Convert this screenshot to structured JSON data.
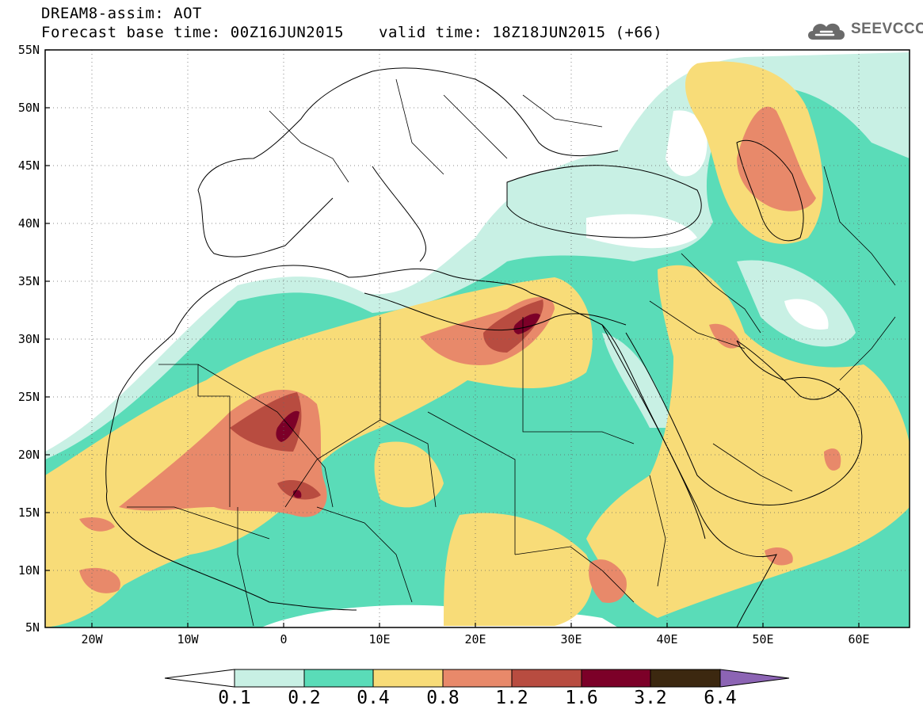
{
  "header": {
    "title": "DREAM8-assim: AOT",
    "base_time": "Forecast base time: 00Z16JUN2015",
    "valid_time": "valid time: 18Z18JUN2015 (+66)"
  },
  "logo": {
    "text": "SEEVCCC",
    "icon": "cloud-icon"
  },
  "map": {
    "lat_labels": [
      "55N",
      "50N",
      "45N",
      "40N",
      "35N",
      "30N",
      "25N",
      "20N",
      "15N",
      "10N",
      "5N"
    ],
    "lon_labels": [
      "20W",
      "10W",
      "0",
      "10E",
      "20E",
      "30E",
      "40E",
      "50E",
      "60E"
    ]
  },
  "colorbar": {
    "labels": [
      "0.1",
      "0.2",
      "0.4",
      "0.8",
      "1.2",
      "1.6",
      "3.2",
      "6.4"
    ],
    "colors": [
      "#c8f0e4",
      "#5adcb8",
      "#f8dc78",
      "#e8896a",
      "#b84c40",
      "#7c0028",
      "#3c2810",
      "#8c64b4"
    ],
    "under_color": "#ffffff"
  }
}
